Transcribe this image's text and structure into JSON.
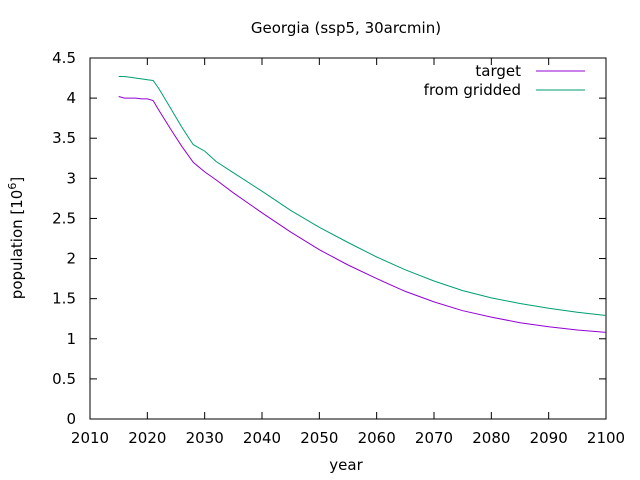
{
  "chart_data": {
    "type": "line",
    "title": "Georgia (ssp5, 30arcmin)",
    "xlabel": "year",
    "ylabel": "population [10",
    "ylabel_exponent": "6",
    "ylabel_suffix": "]",
    "xlim": [
      2010,
      2100
    ],
    "ylim": [
      0,
      4.5
    ],
    "xticks": [
      2010,
      2020,
      2030,
      2040,
      2050,
      2060,
      2070,
      2080,
      2090,
      2100
    ],
    "yticks": [
      0,
      0.5,
      1,
      1.5,
      2,
      2.5,
      3,
      3.5,
      4,
      4.5
    ],
    "xtick_labels": [
      "2010",
      "2020",
      "2030",
      "2040",
      "2050",
      "2060",
      "2070",
      "2080",
      "2090",
      "2100"
    ],
    "ytick_labels": [
      "0",
      "0.5",
      "1",
      "1.5",
      "2",
      "2.5",
      "3",
      "3.5",
      "4",
      "4.5"
    ],
    "grid": false,
    "legend_position": "top-right",
    "series": [
      {
        "name": "target",
        "color": "#9400d3",
        "x": [
          2015,
          2016,
          2017,
          2018,
          2019,
          2020,
          2021,
          2022,
          2024,
          2026,
          2028,
          2030,
          2032,
          2035,
          2040,
          2045,
          2050,
          2055,
          2060,
          2065,
          2070,
          2075,
          2080,
          2085,
          2090,
          2095,
          2100
        ],
        "y": [
          4.02,
          4.0,
          4.0,
          4.0,
          3.99,
          3.99,
          3.97,
          3.85,
          3.62,
          3.4,
          3.2,
          3.08,
          2.98,
          2.82,
          2.57,
          2.33,
          2.11,
          1.92,
          1.75,
          1.59,
          1.46,
          1.35,
          1.27,
          1.2,
          1.15,
          1.11,
          1.08
        ]
      },
      {
        "name": "from gridded",
        "color": "#009e73",
        "x": [
          2015,
          2016,
          2017,
          2018,
          2019,
          2020,
          2021,
          2022,
          2024,
          2026,
          2028,
          2030,
          2032,
          2035,
          2040,
          2045,
          2050,
          2055,
          2060,
          2065,
          2070,
          2075,
          2080,
          2085,
          2090,
          2095,
          2100
        ],
        "y": [
          4.27,
          4.27,
          4.26,
          4.25,
          4.24,
          4.23,
          4.22,
          4.12,
          3.88,
          3.64,
          3.42,
          3.34,
          3.21,
          3.07,
          2.84,
          2.6,
          2.39,
          2.2,
          2.02,
          1.86,
          1.72,
          1.6,
          1.51,
          1.44,
          1.38,
          1.33,
          1.29
        ]
      }
    ]
  }
}
